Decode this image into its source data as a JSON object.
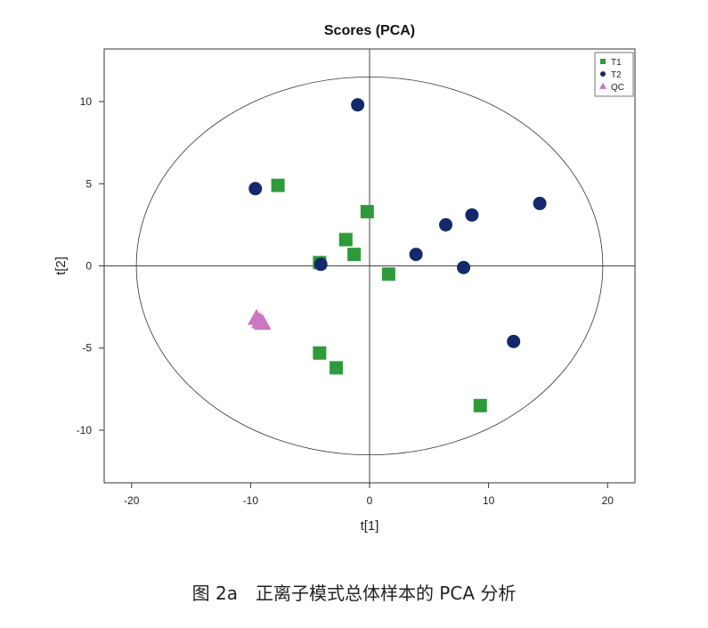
{
  "caption": "图 2a　正离子模式总体样本的 PCA 分析",
  "colors": {
    "T1": "#2e9a3a",
    "T2": "#14286c",
    "QC": "#cc77c0",
    "frame": "#333333",
    "ellipse": "#333333"
  },
  "chart_data": {
    "type": "scatter",
    "title": "Scores (PCA)",
    "xlabel": "t[1]",
    "ylabel": "t[2]",
    "xlim": [
      -22.3,
      22.3
    ],
    "ylim": [
      -13.2,
      13.2
    ],
    "xticks": [
      -20,
      -10,
      0,
      10,
      20
    ],
    "yticks": [
      -10,
      -5,
      0,
      5,
      10
    ],
    "grid": false,
    "reference_lines": {
      "x": 0,
      "y": 0
    },
    "ellipse": {
      "cx": 0,
      "cy": 0,
      "rx": 19.6,
      "ry": 11.5
    },
    "legend_position": "top-right",
    "series": [
      {
        "name": "T1",
        "marker": "square",
        "points": [
          [
            -7.7,
            4.9
          ],
          [
            -0.2,
            3.3
          ],
          [
            -2.0,
            1.6
          ],
          [
            -1.3,
            0.7
          ],
          [
            -4.2,
            0.2
          ],
          [
            1.6,
            -0.5
          ],
          [
            -4.2,
            -5.3
          ],
          [
            -2.8,
            -6.2
          ],
          [
            9.3,
            -8.5
          ]
        ]
      },
      {
        "name": "T2",
        "marker": "circle",
        "points": [
          [
            -1.0,
            9.8
          ],
          [
            -9.6,
            4.7
          ],
          [
            14.3,
            3.8
          ],
          [
            8.6,
            3.1
          ],
          [
            6.4,
            2.5
          ],
          [
            3.9,
            0.7
          ],
          [
            -4.1,
            0.1
          ],
          [
            7.9,
            -0.1
          ],
          [
            12.1,
            -4.6
          ]
        ]
      },
      {
        "name": "QC",
        "marker": "triangle",
        "points": [
          [
            -9.5,
            -3.2
          ],
          [
            -9.2,
            -3.4
          ],
          [
            -9.0,
            -3.5
          ]
        ]
      }
    ]
  }
}
